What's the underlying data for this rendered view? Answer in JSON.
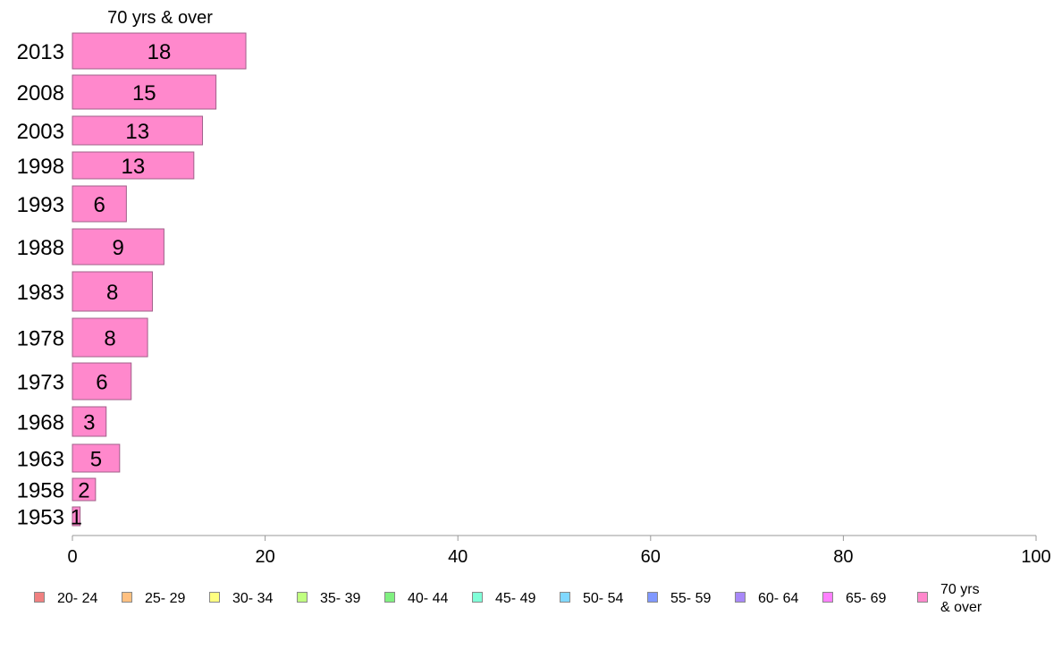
{
  "chart_data": {
    "type": "bar",
    "orientation": "horizontal",
    "title": "70 yrs & over",
    "categories": [
      "2013",
      "2008",
      "2003",
      "1998",
      "1993",
      "1988",
      "1983",
      "1978",
      "1973",
      "1968",
      "1963",
      "1958",
      "1953"
    ],
    "series": [
      {
        "name": "70 yrs & over",
        "values": [
          18,
          15,
          13,
          13,
          6,
          9,
          8,
          8,
          6,
          3,
          5,
          2,
          1
        ],
        "color": "#ff88cc"
      }
    ],
    "bar_lengths_estimated": [
      18.0,
      14.9,
      13.5,
      12.6,
      5.6,
      9.5,
      8.3,
      7.8,
      6.1,
      3.5,
      4.9,
      2.4,
      0.8
    ],
    "xlim": [
      0,
      100
    ],
    "xticks": [
      0,
      20,
      40,
      60,
      80,
      100
    ],
    "grid": false,
    "legend": {
      "position": "bottom",
      "items": [
        {
          "label": "20- 24",
          "color": "#f08080"
        },
        {
          "label": "25- 29",
          "color": "#ffc080"
        },
        {
          "label": "30- 34",
          "color": "#ffff80"
        },
        {
          "label": "35- 39",
          "color": "#c0ff80"
        },
        {
          "label": "40- 44",
          "color": "#80f080"
        },
        {
          "label": "45- 49",
          "color": "#80ffd8"
        },
        {
          "label": "50- 54",
          "color": "#80d8ff"
        },
        {
          "label": "55- 59",
          "color": "#8098ff"
        },
        {
          "label": "60- 64",
          "color": "#a888f8"
        },
        {
          "label": "65- 69",
          "color": "#ff80ff"
        },
        {
          "label": "70 yrs\n& over",
          "color": "#ff88cc"
        }
      ]
    }
  }
}
